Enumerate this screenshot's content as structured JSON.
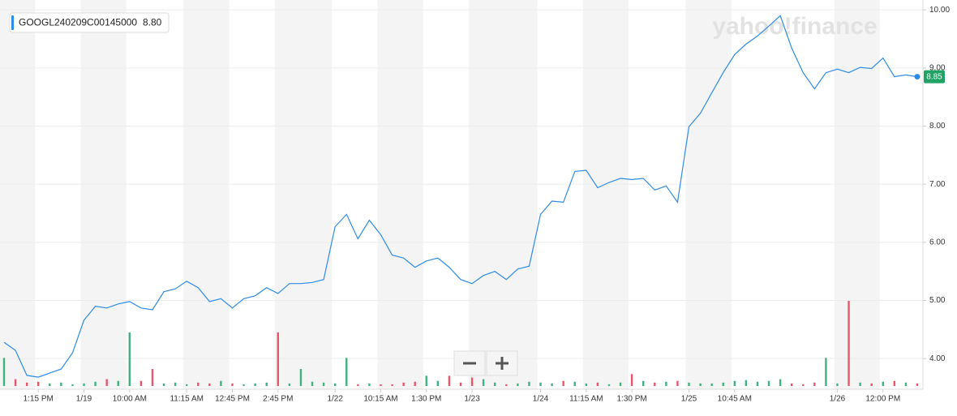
{
  "chart_data": {
    "type": "line",
    "watermark": "yahoo!finance",
    "legend_value": {
      "value": 8.8,
      "label": "8.80"
    },
    "price_marker": {
      "value": 8.85,
      "label": "8.85"
    },
    "categories": [
      null,
      null,
      null,
      "1:15 PM",
      null,
      null,
      null,
      "1/19",
      null,
      null,
      null,
      "10:00 AM",
      null,
      null,
      null,
      null,
      "11:15 AM",
      null,
      null,
      null,
      "12:45 PM",
      null,
      null,
      null,
      "2:45 PM",
      null,
      null,
      null,
      null,
      "1/22",
      null,
      null,
      null,
      "10:15 AM",
      null,
      null,
      null,
      "1:30 PM",
      null,
      null,
      null,
      "1/23",
      null,
      null,
      null,
      null,
      null,
      "1/24",
      null,
      null,
      null,
      "11:15 AM",
      null,
      null,
      null,
      "1:30 PM",
      null,
      null,
      null,
      null,
      "1/25",
      null,
      null,
      null,
      "10:45 AM",
      null,
      null,
      null,
      null,
      null,
      null,
      null,
      null,
      "1/26",
      null,
      null,
      null,
      "12:00 PM",
      null,
      null,
      null
    ],
    "series": [
      {
        "name": "GOOGL240209C00145000",
        "color": "#2e8ce6",
        "values": [
          4.28,
          4.14,
          3.71,
          3.68,
          3.75,
          3.82,
          4.1,
          4.66,
          4.9,
          4.87,
          4.94,
          4.98,
          4.87,
          4.84,
          5.15,
          5.2,
          5.33,
          5.22,
          4.98,
          5.03,
          4.87,
          5.03,
          5.08,
          5.22,
          5.12,
          5.29,
          5.29,
          5.31,
          5.36,
          6.27,
          6.48,
          6.06,
          6.38,
          6.13,
          5.78,
          5.73,
          5.57,
          5.68,
          5.73,
          5.57,
          5.36,
          5.29,
          5.43,
          5.5,
          5.36,
          5.54,
          5.59,
          6.48,
          6.71,
          6.69,
          7.22,
          7.24,
          6.94,
          7.03,
          7.1,
          7.08,
          7.1,
          6.9,
          6.97,
          6.69,
          7.99,
          8.22,
          8.57,
          8.92,
          9.23,
          9.41,
          9.55,
          9.72,
          9.9,
          9.34,
          8.92,
          8.64,
          8.92,
          8.98,
          8.92,
          9.01,
          8.99,
          9.17,
          8.85,
          8.88,
          8.85
        ]
      }
    ],
    "volume": {
      "up_color": "#3fb27f",
      "down_color": "#e9566b",
      "ylim": [
        0,
        100
      ],
      "values": [
        33,
        8,
        4,
        5,
        3,
        4,
        2,
        3,
        5,
        8,
        6,
        63,
        6,
        20,
        3,
        4,
        2,
        4,
        3,
        6,
        3,
        2,
        3,
        4,
        63,
        3,
        20,
        5,
        4,
        3,
        33,
        2,
        3,
        2,
        2,
        4,
        5,
        12,
        6,
        12,
        4,
        10,
        8,
        4,
        2,
        3,
        5,
        4,
        3,
        6,
        5,
        3,
        4,
        2,
        4,
        14,
        6,
        4,
        5,
        6,
        4,
        3,
        3,
        4,
        6,
        7,
        5,
        6,
        8,
        3,
        2,
        4,
        33,
        3,
        100,
        4,
        3,
        5,
        6,
        4,
        3
      ]
    },
    "ylim": [
      3.5,
      10.1
    ],
    "yticks": [
      {
        "value": 4,
        "label": "4.00"
      },
      {
        "value": 5,
        "label": "5.00"
      },
      {
        "value": 6,
        "label": "6.00"
      },
      {
        "value": 7,
        "label": "7.00"
      },
      {
        "value": 8,
        "label": "8.00"
      },
      {
        "value": 9,
        "label": "9.00"
      },
      {
        "value": 10,
        "label": "10.00"
      }
    ],
    "grid": true
  }
}
